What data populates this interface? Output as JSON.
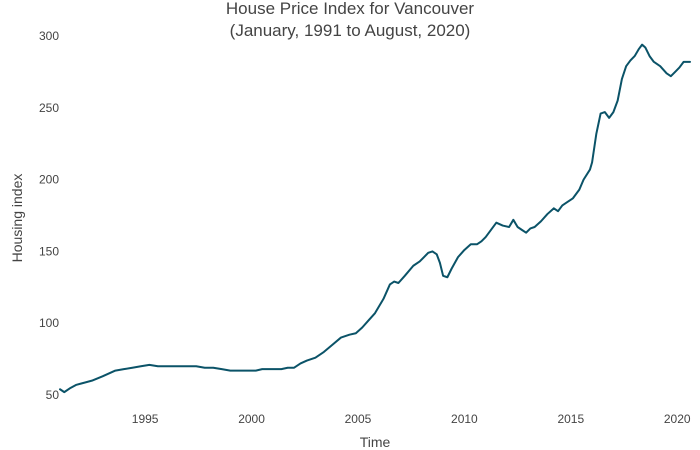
{
  "chart_data": {
    "type": "line",
    "title": "House Price Index for Vancouver",
    "subtitle": "(January, 1991 to August, 2020)",
    "xlabel": "Time",
    "ylabel": "Housing index",
    "xlim": [
      1991.0,
      2020.6
    ],
    "ylim": [
      50,
      300
    ],
    "xticks": [
      "1995",
      "2000",
      "2005",
      "2010",
      "2015",
      "2020"
    ],
    "yticks": [
      "50",
      "100",
      "150",
      "200",
      "250",
      "300"
    ],
    "grid": false,
    "legend": "none",
    "series": [
      {
        "color": "#0b5368",
        "x": [
          1991.0,
          1991.2,
          1991.5,
          1991.75,
          1992.0,
          1992.5,
          1993.0,
          1993.3,
          1993.6,
          1994.0,
          1994.4,
          1994.8,
          1995.2,
          1995.6,
          1996.0,
          1996.5,
          1997.0,
          1997.4,
          1997.8,
          1998.2,
          1998.6,
          1999.0,
          1999.4,
          1999.8,
          2000.2,
          2000.5,
          2000.8,
          2001.1,
          2001.4,
          2001.7,
          2002.0,
          2002.3,
          2002.6,
          2003.0,
          2003.4,
          2003.8,
          2004.2,
          2004.6,
          2004.9,
          2005.2,
          2005.5,
          2005.8,
          2006.2,
          2006.5,
          2006.7,
          2006.9,
          2007.2,
          2007.6,
          2007.9,
          2008.1,
          2008.3,
          2008.5,
          2008.7,
          2008.85,
          2009.0,
          2009.2,
          2009.4,
          2009.7,
          2010.0,
          2010.3,
          2010.6,
          2010.8,
          2011.0,
          2011.3,
          2011.5,
          2011.8,
          2012.1,
          2012.3,
          2012.5,
          2012.7,
          2012.9,
          2013.1,
          2013.3,
          2013.6,
          2013.9,
          2014.2,
          2014.4,
          2014.6,
          2014.8,
          2015.1,
          2015.4,
          2015.6,
          2015.9,
          2016.0,
          2016.2,
          2016.4,
          2016.6,
          2016.8,
          2017.0,
          2017.2,
          2017.4,
          2017.6,
          2017.8,
          2018.0,
          2018.2,
          2018.35,
          2018.5,
          2018.7,
          2018.9,
          2019.2,
          2019.5,
          2019.7,
          2019.9,
          2020.1,
          2020.3,
          2020.6
        ],
        "y": [
          54,
          52,
          55,
          57,
          58,
          60,
          63,
          65,
          67,
          68,
          69,
          70,
          71,
          70,
          70,
          70,
          70,
          70,
          69,
          69,
          68,
          67,
          67,
          67,
          67,
          68,
          68,
          68,
          68,
          69,
          69,
          72,
          74,
          76,
          80,
          85,
          90,
          92,
          93,
          97,
          102,
          107,
          117,
          127,
          129,
          128,
          133,
          140,
          143,
          146,
          149,
          150,
          148,
          142,
          133,
          132,
          138,
          146,
          151,
          155,
          155,
          157,
          160,
          166,
          170,
          168,
          167,
          172,
          167,
          165,
          163,
          166,
          167,
          171,
          176,
          180,
          178,
          182,
          184,
          187,
          193,
          200,
          207,
          212,
          232,
          246,
          247,
          243,
          247,
          255,
          270,
          279,
          283,
          286,
          291,
          294,
          292,
          286,
          282,
          279,
          274,
          272,
          275,
          278,
          282,
          282
        ]
      }
    ]
  }
}
